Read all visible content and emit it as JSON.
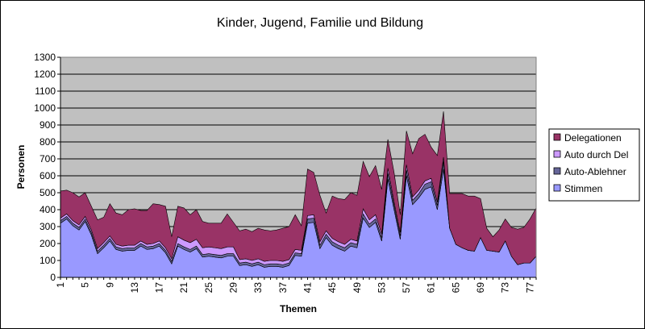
{
  "chart_data": {
    "type": "area",
    "stacked": true,
    "title": "Kinder, Jugend, Familie und Bildung",
    "xlabel": "Themen",
    "ylabel": "Personen",
    "ylim": [
      0,
      1300
    ],
    "y_ticks": [
      0,
      100,
      200,
      300,
      400,
      500,
      600,
      700,
      800,
      900,
      1000,
      1100,
      1200,
      1300
    ],
    "x": [
      1,
      2,
      3,
      4,
      5,
      6,
      7,
      8,
      9,
      10,
      11,
      12,
      13,
      14,
      15,
      16,
      17,
      18,
      19,
      20,
      21,
      22,
      23,
      24,
      25,
      26,
      27,
      28,
      29,
      30,
      31,
      32,
      33,
      34,
      35,
      36,
      37,
      38,
      39,
      40,
      41,
      42,
      43,
      44,
      45,
      46,
      47,
      48,
      49,
      50,
      51,
      52,
      53,
      54,
      55,
      56,
      57,
      58,
      59,
      60,
      61,
      62,
      63,
      64,
      65,
      66,
      67,
      68,
      69,
      70,
      71,
      72,
      73,
      74,
      75,
      76,
      77,
      78
    ],
    "x_tick_labels": [
      "1",
      "5",
      "9",
      "13",
      "17",
      "21",
      "25",
      "29",
      "33",
      "37",
      "41",
      "45",
      "49",
      "53",
      "57",
      "61",
      "65",
      "69",
      "73",
      "77"
    ],
    "x_tick_labels_shown": [
      "1",
      "5",
      "9",
      "13",
      "17",
      "21",
      "25",
      "29",
      "33",
      "37",
      "41",
      "45",
      "49",
      "53",
      "57",
      "61",
      "65",
      "69",
      "73",
      "77"
    ],
    "grid": true,
    "legend_position": "right",
    "plot_background": "#c0c0c0",
    "series": [
      {
        "name": "Stimmen",
        "color": "#9999ff",
        "values": [
          320,
          345,
          305,
          280,
          330,
          250,
          140,
          175,
          215,
          165,
          155,
          160,
          160,
          185,
          165,
          170,
          185,
          145,
          80,
          185,
          165,
          150,
          170,
          120,
          125,
          120,
          115,
          125,
          125,
          70,
          75,
          65,
          75,
          60,
          65,
          65,
          60,
          70,
          130,
          125,
          320,
          325,
          170,
          235,
          190,
          170,
          155,
          185,
          175,
          350,
          295,
          325,
          215,
          580,
          400,
          225,
          600,
          430,
          470,
          520,
          535,
          400,
          640,
          290,
          195,
          175,
          160,
          155,
          235,
          160,
          155,
          150,
          215,
          125,
          75,
          85,
          85,
          125
        ]
      },
      {
        "name": "Auto-Ablehner",
        "color": "#666699",
        "values": [
          15,
          15,
          15,
          15,
          15,
          15,
          15,
          15,
          15,
          15,
          15,
          15,
          15,
          15,
          15,
          15,
          15,
          15,
          15,
          15,
          15,
          15,
          15,
          15,
          15,
          15,
          15,
          15,
          15,
          15,
          15,
          15,
          15,
          15,
          15,
          15,
          15,
          15,
          15,
          15,
          25,
          25,
          20,
          20,
          20,
          20,
          20,
          20,
          20,
          25,
          20,
          20,
          20,
          35,
          25,
          20,
          35,
          25,
          25,
          30,
          30,
          25,
          45,
          0,
          0,
          0,
          0,
          0,
          0,
          0,
          0,
          0,
          0,
          0,
          0,
          0,
          0,
          0
        ]
      },
      {
        "name": "Auto durch Del",
        "color": "#cc99ff",
        "values": [
          15,
          15,
          15,
          15,
          15,
          15,
          15,
          15,
          15,
          15,
          15,
          15,
          15,
          15,
          15,
          15,
          15,
          15,
          15,
          40,
          40,
          40,
          40,
          40,
          40,
          40,
          40,
          40,
          40,
          20,
          20,
          20,
          20,
          20,
          20,
          20,
          20,
          20,
          20,
          20,
          20,
          20,
          20,
          20,
          20,
          20,
          20,
          20,
          20,
          30,
          25,
          25,
          20,
          30,
          20,
          20,
          30,
          20,
          20,
          20,
          20,
          20,
          25,
          0,
          0,
          0,
          0,
          0,
          0,
          0,
          0,
          0,
          0,
          0,
          0,
          0,
          0,
          0
        ]
      },
      {
        "name": "Delegationen",
        "color": "#993366",
        "values": [
          160,
          140,
          165,
          165,
          140,
          140,
          170,
          150,
          190,
          185,
          185,
          210,
          215,
          180,
          200,
          235,
          215,
          245,
          130,
          180,
          190,
          165,
          175,
          155,
          140,
          145,
          150,
          195,
          145,
          170,
          175,
          170,
          180,
          185,
          175,
          180,
          195,
          195,
          205,
          145,
          275,
          250,
          275,
          105,
          250,
          255,
          265,
          275,
          270,
          280,
          255,
          290,
          265,
          170,
          175,
          105,
          200,
          255,
          305,
          275,
          185,
          275,
          270,
          205,
          300,
          320,
          320,
          325,
          230,
          130,
          85,
          130,
          130,
          170,
          210,
          210,
          260,
          285
        ]
      }
    ]
  }
}
